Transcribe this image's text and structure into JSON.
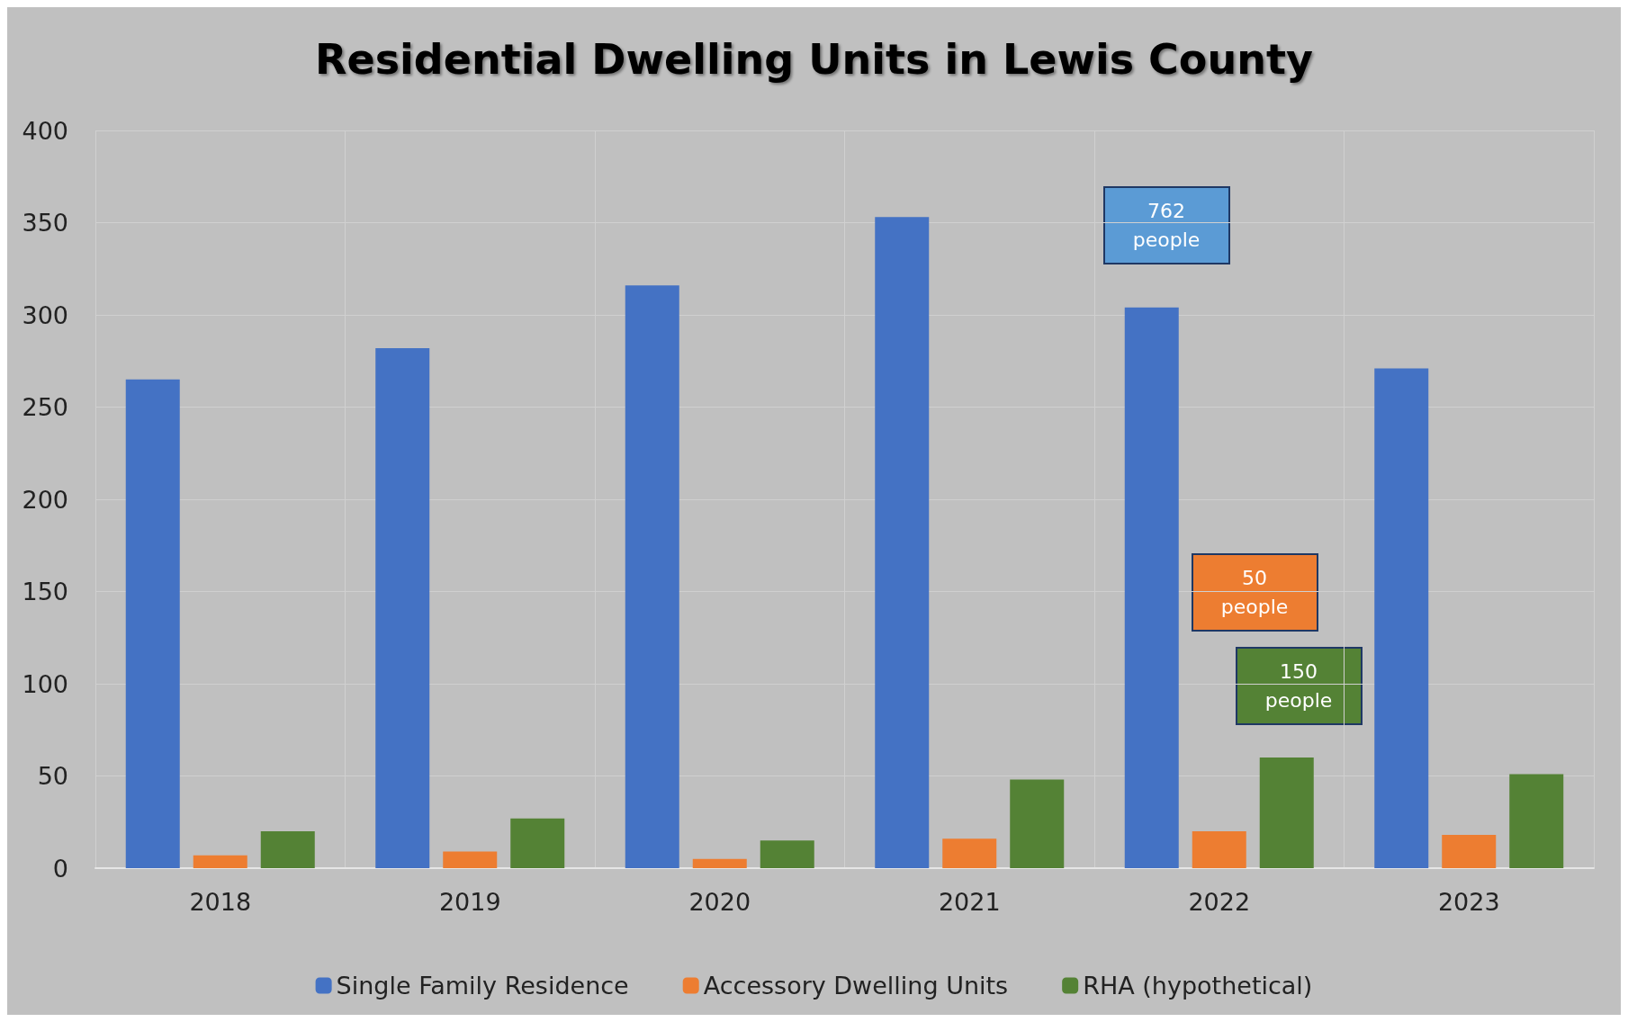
{
  "chart_data": {
    "type": "bar",
    "title": "Residential Dwelling Units in Lewis County",
    "categories": [
      "2018",
      "2019",
      "2020",
      "2021",
      "2022",
      "2023"
    ],
    "series": [
      {
        "name": "Single Family Residence",
        "color": "#4472c4",
        "values": [
          265,
          282,
          316,
          353,
          304,
          271
        ]
      },
      {
        "name": "Accessory Dwelling Units",
        "color": "#ed7d31",
        "values": [
          7,
          9,
          5,
          16,
          20,
          18
        ]
      },
      {
        "name": "RHA (hypothetical)",
        "color": "#548235",
        "values": [
          20,
          27,
          15,
          48,
          60,
          51
        ]
      }
    ],
    "ylim": [
      0,
      400
    ],
    "yticks": [
      0,
      50,
      100,
      150,
      200,
      250,
      300,
      350,
      400
    ],
    "grid": true,
    "legend": "bottom",
    "annotations": [
      "762\npeople",
      "50\npeople",
      "150\npeople"
    ]
  }
}
